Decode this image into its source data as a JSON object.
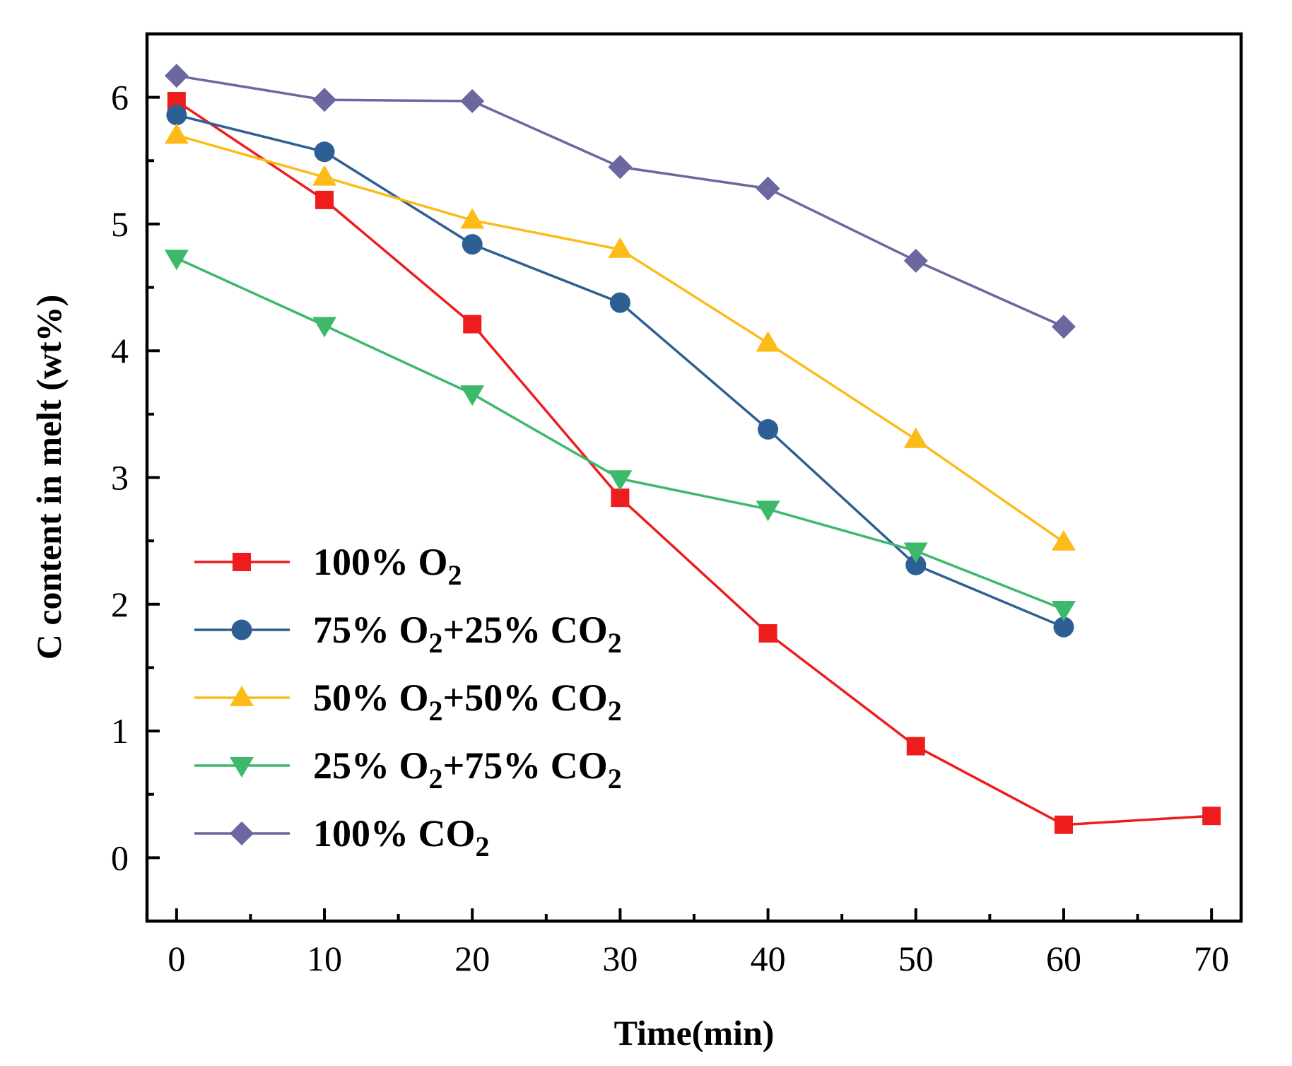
{
  "chart_data": {
    "type": "line",
    "title": "",
    "xlabel": "Time(min)",
    "ylabel": "C content in melt (wt%)",
    "xlim": [
      -2,
      72
    ],
    "ylim": [
      -0.5,
      6.5
    ],
    "xticks": [
      0,
      10,
      20,
      30,
      40,
      50,
      60,
      70
    ],
    "yticks": [
      0,
      1,
      2,
      3,
      4,
      5,
      6
    ],
    "grid": false,
    "legend_position": "lower-left",
    "series": [
      {
        "name": "100% O2",
        "legend_label": {
          "prefix": "100% O",
          "sub1": "2",
          "mid": "",
          "sub2": ""
        },
        "color": "#ee1c1c",
        "marker": "square",
        "x": [
          0,
          10,
          20,
          30,
          40,
          50,
          60,
          70
        ],
        "y": [
          5.97,
          5.19,
          4.21,
          2.84,
          1.77,
          0.88,
          0.26,
          0.33
        ]
      },
      {
        "name": "75% O2+25% CO2",
        "legend_label": {
          "prefix": "75% O",
          "sub1": "2",
          "mid": "+25% CO",
          "sub2": "2"
        },
        "color": "#2e5f94",
        "marker": "circle",
        "x": [
          0,
          10,
          20,
          30,
          40,
          50,
          60
        ],
        "y": [
          5.86,
          5.57,
          4.84,
          4.38,
          3.38,
          2.31,
          1.82
        ]
      },
      {
        "name": "50% O2+50% CO2",
        "legend_label": {
          "prefix": "50% O",
          "sub1": "2",
          "mid": "+50% CO",
          "sub2": "2"
        },
        "color": "#fdbb1a",
        "marker": "triangle-up",
        "x": [
          0,
          10,
          20,
          30,
          40,
          50,
          60
        ],
        "y": [
          5.7,
          5.37,
          5.03,
          4.8,
          4.06,
          3.3,
          2.49
        ]
      },
      {
        "name": "25% O2+75% CO2",
        "legend_label": {
          "prefix": "25% O",
          "sub1": "2",
          "mid": "+75% CO",
          "sub2": "2"
        },
        "color": "#3db96a",
        "marker": "triangle-down",
        "x": [
          0,
          10,
          20,
          30,
          40,
          50,
          60
        ],
        "y": [
          4.73,
          4.2,
          3.66,
          2.99,
          2.75,
          2.42,
          1.96
        ]
      },
      {
        "name": "100% CO2",
        "legend_label": {
          "prefix": "100% CO",
          "sub1": "2",
          "mid": "",
          "sub2": ""
        },
        "color": "#6b679f",
        "marker": "diamond",
        "x": [
          0,
          10,
          20,
          30,
          40,
          50,
          60
        ],
        "y": [
          6.17,
          5.98,
          5.97,
          5.45,
          5.28,
          4.71,
          4.19
        ]
      }
    ]
  }
}
